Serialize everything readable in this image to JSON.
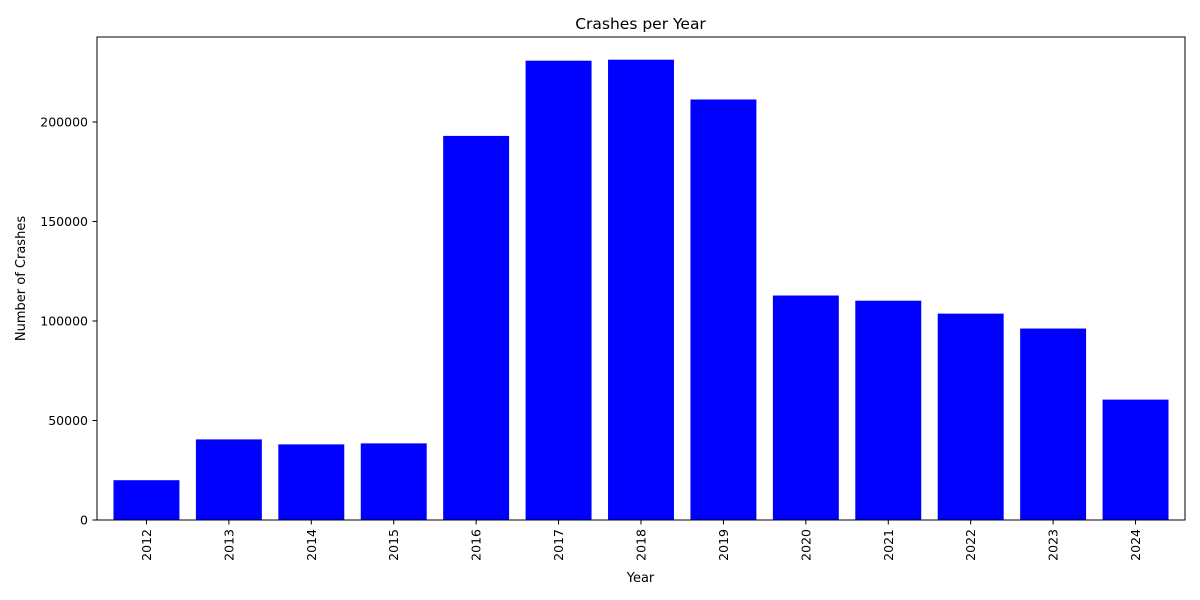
{
  "chart_data": {
    "type": "bar",
    "title": "Crashes per Year",
    "xlabel": "Year",
    "ylabel": "Number of Crashes",
    "categories": [
      "2012",
      "2013",
      "2014",
      "2015",
      "2016",
      "2017",
      "2018",
      "2019",
      "2020",
      "2021",
      "2022",
      "2023",
      "2024"
    ],
    "values": [
      20000,
      40500,
      38000,
      38500,
      193000,
      230800,
      231300,
      211300,
      112800,
      110200,
      103700,
      96200,
      60500
    ],
    "ylim": [
      0,
      242700
    ],
    "yticks": [
      0,
      50000,
      100000,
      150000,
      200000
    ],
    "ytick_labels": [
      "0",
      "50000",
      "100000",
      "150000",
      "200000"
    ],
    "bar_color": "#0000ff",
    "grid": false,
    "legend": "none"
  }
}
